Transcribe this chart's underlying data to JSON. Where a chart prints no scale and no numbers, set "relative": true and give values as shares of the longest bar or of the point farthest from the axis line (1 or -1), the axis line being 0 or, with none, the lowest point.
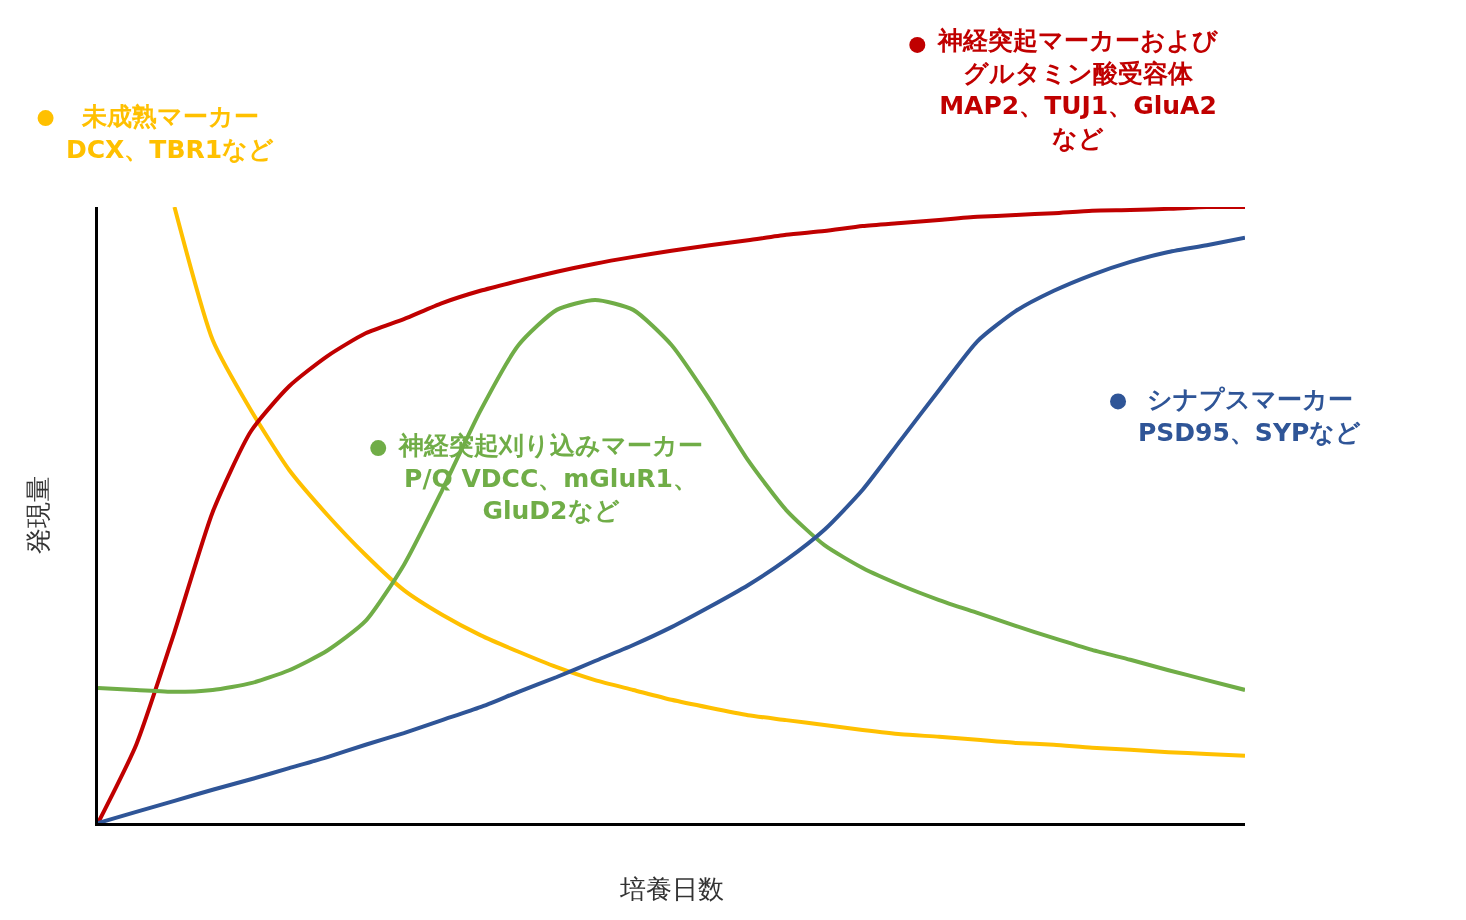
{
  "chart_data": {
    "type": "line",
    "relative": true,
    "xlabel": "培養日数",
    "ylabel": "発現量",
    "tick_labels": false,
    "legend": "top",
    "marker": "none",
    "line_style": "solid",
    "categories": [
      null,
      null,
      null,
      null,
      null,
      null,
      null,
      null,
      null,
      null,
      null,
      null,
      null,
      null,
      null,
      null,
      null,
      null,
      null,
      null,
      null,
      null,
      null,
      null,
      null,
      null,
      null,
      null,
      null,
      null,
      null
    ],
    "series": [
      {
        "name": "未成熟マーカーDCX、TBR1など",
        "color": "#ffc000",
        "values": [
          null,
          null,
          1.0,
          0.784,
          0.67,
          0.573,
          0.5,
          0.435,
          0.378,
          0.338,
          0.305,
          0.278,
          0.253,
          0.232,
          0.216,
          0.2,
          0.187,
          0.175,
          0.167,
          0.159,
          0.151,
          0.144,
          0.14,
          0.135,
          0.13,
          0.127,
          0.122,
          0.119,
          0.115,
          0.112,
          0.109
        ]
      },
      {
        "name": "神経突起マーカーおよびグルタミン酸受容体MAP2、TUJ1、GluA2など",
        "color": "#c00000",
        "values": [
          0,
          0.127,
          0.31,
          0.505,
          0.636,
          0.709,
          0.758,
          0.795,
          0.818,
          0.844,
          0.864,
          0.88,
          0.895,
          0.908,
          0.919,
          0.929,
          0.938,
          0.946,
          0.955,
          0.961,
          0.969,
          0.974,
          0.979,
          0.984,
          0.987,
          0.99,
          0.994,
          0.995,
          0.997,
          1.0,
          1.0
        ]
      },
      {
        "name": "神経突起刈り込みマーカーP/Q VDCC、mGluR1、GluD2など",
        "color": "#70ad47",
        "values": [
          0.219,
          0.216,
          0.213,
          0.216,
          0.227,
          0.248,
          0.28,
          0.328,
          0.419,
          0.54,
          0.669,
          0.776,
          0.833,
          0.849,
          0.833,
          0.776,
          0.687,
          0.589,
          0.508,
          0.451,
          0.414,
          0.386,
          0.362,
          0.341,
          0.32,
          0.3,
          0.281,
          0.265,
          0.248,
          0.232,
          0.216
        ]
      },
      {
        "name": "シナプスマーカーPSD95、SYPなど",
        "color": "#2f5597",
        "values": [
          0,
          0.018,
          0.036,
          0.054,
          0.071,
          0.089,
          0.107,
          0.127,
          0.146,
          0.167,
          0.188,
          0.213,
          0.237,
          0.263,
          0.289,
          0.318,
          0.351,
          0.386,
          0.427,
          0.476,
          0.541,
          0.622,
          0.703,
          0.782,
          0.831,
          0.864,
          0.89,
          0.911,
          0.927,
          0.938,
          0.95
        ]
      }
    ]
  }
}
